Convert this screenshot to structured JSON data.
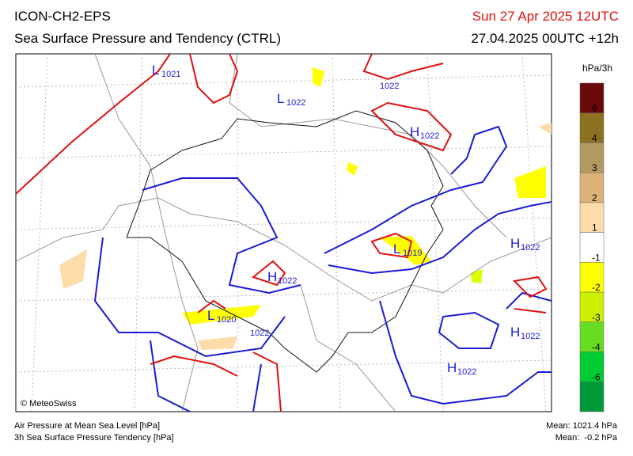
{
  "header": {
    "model": "ICON-CH2-EPS",
    "title": "Sea Surface Pressure and Tendency (CTRL)",
    "valid_time": "Sun 27 Apr 2025 12UTC",
    "run_time": "27.04.2025 00UTC +12h"
  },
  "map": {
    "systems": [
      {
        "letter": "L",
        "value": "1021"
      },
      {
        "letter": "L",
        "value": "1022"
      },
      {
        "letter": "H",
        "value": "1022"
      },
      {
        "letter": "L",
        "value": "1019"
      },
      {
        "letter": "H",
        "value": "1022"
      },
      {
        "letter": "H",
        "value": "1022"
      },
      {
        "letter": "L",
        "value": "1020"
      },
      {
        "letter": "H",
        "value": "1022"
      },
      {
        "letter": "H",
        "value": "1022"
      }
    ],
    "isobar_labels": [
      "1022",
      "1022"
    ],
    "copyright": "© MeteoSwiss"
  },
  "colorbar": {
    "unit": "hPa/3h",
    "colors": [
      "#6b0a0a",
      "#8c7120",
      "#b39a62",
      "#dcb27a",
      "#fddcaa",
      "#ffffff",
      "#ffff00",
      "#ccf000",
      "#66dd22",
      "#00cc33",
      "#00993a"
    ],
    "labels": [
      "6",
      "4",
      "3",
      "2",
      "1",
      "-1",
      "-2",
      "-3",
      "-4",
      "-6"
    ]
  },
  "footer": {
    "left": [
      "Air Pressure at Mean Sea Level [hPa]",
      "3h Sea Surface Pressure Tendency [hPa]"
    ],
    "right": [
      "Mean: 1021.4 hPa",
      "Mean:  -0.2 hPa"
    ]
  }
}
